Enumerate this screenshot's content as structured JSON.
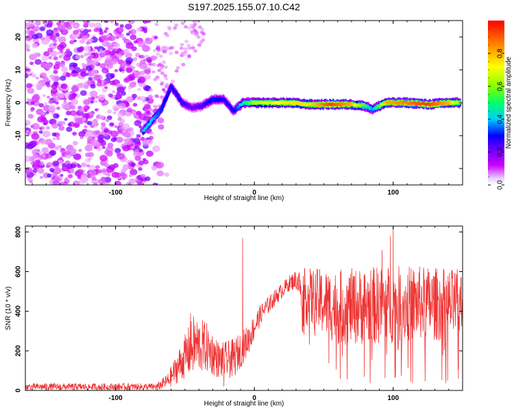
{
  "title": "S197.2025.155.07.10.C42",
  "chart_data": [
    {
      "type": "heatmap",
      "xlabel": "Height of straight line (km)",
      "ylabel": "Frequency (Hz)",
      "xlim": [
        -165,
        150
      ],
      "ylim": [
        -25,
        25
      ],
      "xticks": [
        -100,
        0,
        100
      ],
      "yticks": [
        -20,
        -10,
        0,
        10,
        20
      ],
      "colorbar": {
        "label": "Normalized spectral amplitude",
        "range": [
          0,
          1
        ],
        "ticks": [
          "0.0",
          "0.2",
          "0.4",
          "0.6",
          "0.8"
        ],
        "colormap": [
          "#ffffff",
          "#cc00ff",
          "#6600ff",
          "#0000ff",
          "#00ccff",
          "#00ff66",
          "#88ff00",
          "#ffff00",
          "#ff8800",
          "#ff0000"
        ]
      },
      "noise_region_x": [
        -165,
        -75
      ],
      "ridge": [
        {
          "x": -80,
          "freq": -8.5,
          "amp": 0.45
        },
        {
          "x": -74,
          "freq": -5.5,
          "amp": 0.45
        },
        {
          "x": -67,
          "freq": -2.0,
          "amp": 0.35
        },
        {
          "x": -60,
          "freq": 5.0,
          "amp": 0.3
        },
        {
          "x": -52,
          "freq": 0.0,
          "amp": 0.3
        },
        {
          "x": -45,
          "freq": -1.5,
          "amp": 0.2
        },
        {
          "x": -38,
          "freq": -1.0,
          "amp": 0.25
        },
        {
          "x": -30,
          "freq": 1.0,
          "amp": 0.35
        },
        {
          "x": -22,
          "freq": 1.0,
          "amp": 0.3
        },
        {
          "x": -15,
          "freq": -2.5,
          "amp": 0.3
        },
        {
          "x": -8,
          "freq": 0.0,
          "amp": 0.5
        },
        {
          "x": 0,
          "freq": 0.0,
          "amp": 0.7
        },
        {
          "x": 10,
          "freq": 0.0,
          "amp": 0.75
        },
        {
          "x": 25,
          "freq": 0.0,
          "amp": 0.8
        },
        {
          "x": 40,
          "freq": -0.5,
          "amp": 0.8
        },
        {
          "x": 55,
          "freq": -0.5,
          "amp": 0.95
        },
        {
          "x": 70,
          "freq": -0.5,
          "amp": 0.85
        },
        {
          "x": 80,
          "freq": -1.0,
          "amp": 0.6
        },
        {
          "x": 85,
          "freq": -2.0,
          "amp": 0.4
        },
        {
          "x": 95,
          "freq": 0.0,
          "amp": 0.85
        },
        {
          "x": 110,
          "freq": 0.0,
          "amp": 0.9
        },
        {
          "x": 125,
          "freq": -0.5,
          "amp": 0.95
        },
        {
          "x": 140,
          "freq": 0.0,
          "amp": 0.85
        },
        {
          "x": 148,
          "freq": 0.0,
          "amp": 0.7
        }
      ]
    },
    {
      "type": "line",
      "xlabel": "Height of straight line (km)",
      "ylabel": "SNR (10 * v/v)",
      "xlim": [
        -165,
        150
      ],
      "ylim": [
        0,
        830
      ],
      "xticks": [
        -100,
        0,
        100
      ],
      "yticks": [
        0,
        200,
        400,
        600,
        800
      ],
      "color": "#ee3333",
      "envelope": [
        {
          "x": -165,
          "mean": 18,
          "amp": 18
        },
        {
          "x": -70,
          "mean": 18,
          "amp": 18
        },
        {
          "x": -62,
          "mean": 50,
          "amp": 40
        },
        {
          "x": -52,
          "mean": 150,
          "amp": 100
        },
        {
          "x": -44,
          "mean": 230,
          "amp": 150
        },
        {
          "x": -35,
          "mean": 220,
          "amp": 130
        },
        {
          "x": -25,
          "mean": 150,
          "amp": 90
        },
        {
          "x": -15,
          "mean": 160,
          "amp": 100
        },
        {
          "x": -5,
          "mean": 250,
          "amp": 80
        },
        {
          "x": 5,
          "mean": 390,
          "amp": 50
        },
        {
          "x": 15,
          "mean": 470,
          "amp": 40
        },
        {
          "x": 25,
          "mean": 540,
          "amp": 40
        },
        {
          "x": 30,
          "mean": 560,
          "amp": 50
        },
        {
          "x": 38,
          "mean": 470,
          "amp": 150
        },
        {
          "x": 60,
          "mean": 420,
          "amp": 190
        },
        {
          "x": 90,
          "mean": 430,
          "amp": 200
        },
        {
          "x": 120,
          "mean": 440,
          "amp": 190
        },
        {
          "x": 150,
          "mean": 430,
          "amp": 180
        }
      ],
      "spikes": [
        {
          "x": -8.5,
          "y": 770
        },
        {
          "x": -46,
          "y": 390
        },
        {
          "x": 100,
          "y": 820
        },
        {
          "x": 98,
          "y": 780
        },
        {
          "x": 92,
          "y": 710
        },
        {
          "x": 147,
          "y": 60
        },
        {
          "x": -22,
          "y": 20
        }
      ]
    }
  ]
}
